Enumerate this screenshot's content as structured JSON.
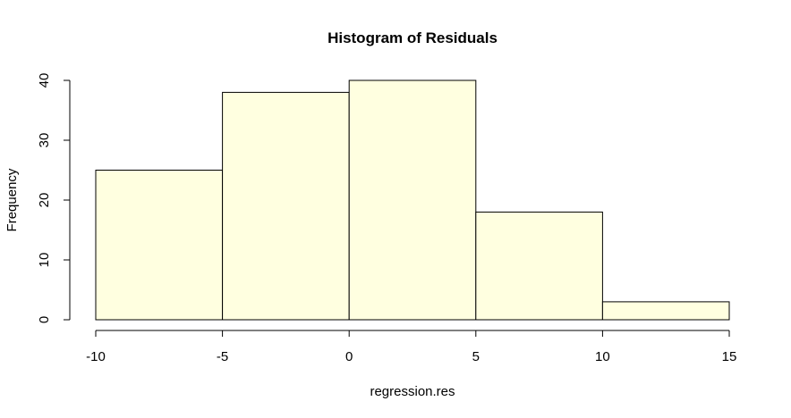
{
  "chart_data": {
    "type": "bar",
    "title": "Histogram of Residuals",
    "xlabel": "regression.res",
    "ylabel": "Frequency",
    "bins": [
      {
        "from": -10,
        "to": -5,
        "count": 25
      },
      {
        "from": -5,
        "to": 0,
        "count": 38
      },
      {
        "from": 0,
        "to": 5,
        "count": 40
      },
      {
        "from": 5,
        "to": 10,
        "count": 18
      },
      {
        "from": 10,
        "to": 15,
        "count": 3
      }
    ],
    "xlim": [
      -10,
      15
    ],
    "ylim": [
      0,
      40
    ],
    "xticks": [
      -10,
      -5,
      0,
      5,
      10,
      15
    ],
    "yticks": [
      0,
      10,
      20,
      30,
      40
    ],
    "bar_color": "#ffffe0",
    "grid": false
  }
}
